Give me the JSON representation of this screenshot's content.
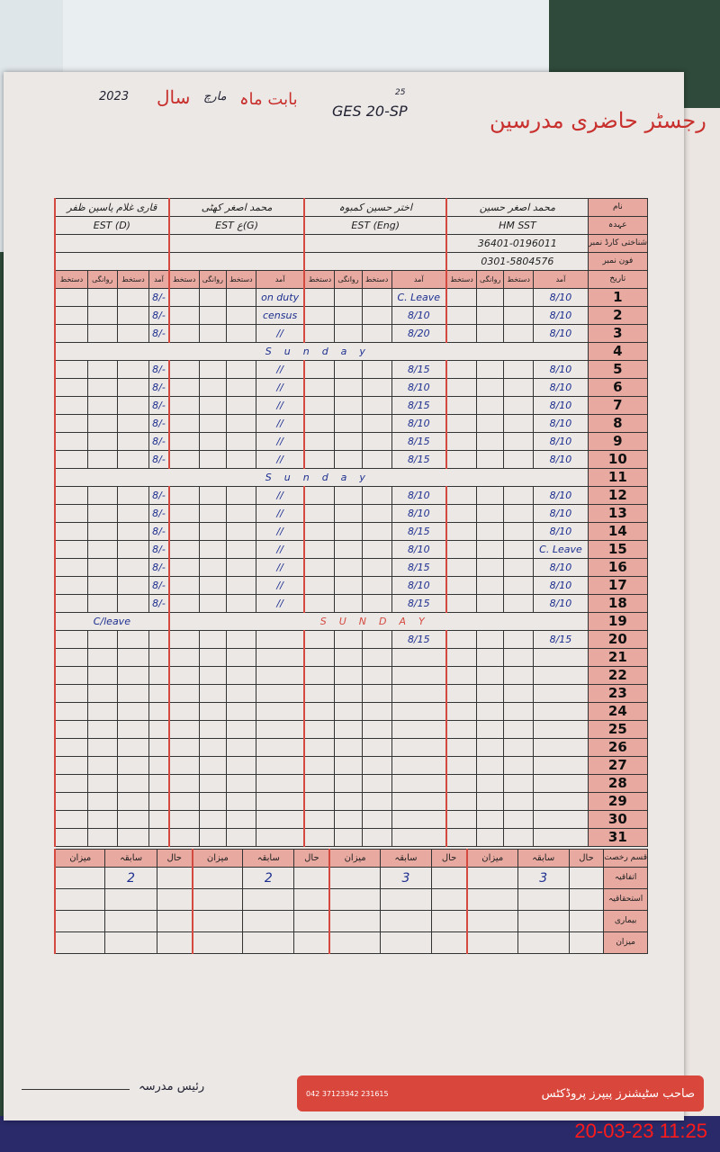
{
  "register": {
    "title": "رجسٹر حاضری مدرسین",
    "year_label": "سال",
    "year": "2023",
    "month_label": "بابت ماہ",
    "month": "مارچ",
    "school": "GES 20-SP",
    "school_note": "25"
  },
  "row_labels": {
    "name": "نام",
    "designation": "عہدہ",
    "cnic": "شناختی کارڈ نمبر",
    "phone": "فون نمبر",
    "date": "تاریخ"
  },
  "sub_headers": [
    "آمد",
    "دستخط",
    "روانگی",
    "دستخط"
  ],
  "teachers": [
    {
      "name": "محمد اصغر حسین",
      "designation": "HM SST",
      "cnic": "36401-0196011",
      "phone": "0301-5804576"
    },
    {
      "name": "اختر حسین کمبوہ",
      "designation": "EST (Eng)",
      "cnic": "",
      "phone": ""
    },
    {
      "name": "محمد اصغر کھٹی",
      "designation": "EST ع(G)",
      "cnic": "",
      "phone": ""
    },
    {
      "name": "قاری غلام یاسین ظفر",
      "designation": "EST (D)",
      "cnic": "",
      "phone": ""
    }
  ],
  "days": [
    {
      "day": "1",
      "entries": [
        "8/10",
        "C. Leave",
        "on duty",
        "8/-"
      ]
    },
    {
      "day": "2",
      "entries": [
        "8/10",
        "8/10",
        "census",
        "8/-"
      ]
    },
    {
      "day": "3",
      "entries": [
        "8/10",
        "8/20",
        "//",
        "8/-"
      ]
    },
    {
      "day": "4",
      "sunday": "Sunday"
    },
    {
      "day": "5",
      "entries": [
        "8/10",
        "8/15",
        "//",
        "8/-"
      ]
    },
    {
      "day": "6",
      "entries": [
        "8/10",
        "8/10",
        "//",
        "8/-"
      ]
    },
    {
      "day": "7",
      "entries": [
        "8/10",
        "8/15",
        "//",
        "8/-"
      ]
    },
    {
      "day": "8",
      "entries": [
        "8/10",
        "8/10",
        "//",
        "8/-"
      ]
    },
    {
      "day": "9",
      "entries": [
        "8/10",
        "8/15",
        "//",
        "8/-"
      ]
    },
    {
      "day": "10",
      "entries": [
        "8/10",
        "8/15",
        "//",
        "8/-"
      ]
    },
    {
      "day": "11",
      "sunday": "Sunday"
    },
    {
      "day": "12",
      "entries": [
        "8/10",
        "8/10",
        "//",
        "8/-"
      ]
    },
    {
      "day": "13",
      "entries": [
        "8/10",
        "8/10",
        "//",
        "8/-"
      ]
    },
    {
      "day": "14",
      "entries": [
        "8/10",
        "8/15",
        "//",
        "8/-"
      ]
    },
    {
      "day": "15",
      "entries": [
        "C. Leave",
        "8/10",
        "//",
        "8/-"
      ]
    },
    {
      "day": "16",
      "entries": [
        "8/10",
        "8/15",
        "//",
        "8/-"
      ]
    },
    {
      "day": "17",
      "entries": [
        "8/10",
        "8/10",
        "//",
        "8/-"
      ]
    },
    {
      "day": "18",
      "entries": [
        "8/10",
        "8/15",
        "//",
        "8/-"
      ]
    },
    {
      "day": "19",
      "sunday": "SUNDAY",
      "extra": "C/leave"
    },
    {
      "day": "20",
      "entries": [
        "8/15",
        "8/15",
        "",
        ""
      ]
    },
    {
      "day": "21"
    },
    {
      "day": "22"
    },
    {
      "day": "23"
    },
    {
      "day": "24"
    },
    {
      "day": "25"
    },
    {
      "day": "26"
    },
    {
      "day": "27"
    },
    {
      "day": "28"
    },
    {
      "day": "29"
    },
    {
      "day": "30"
    },
    {
      "day": "31"
    }
  ],
  "summary": {
    "type_label": "قسم رخصت",
    "cols": [
      "حال",
      "سابقہ",
      "میزان"
    ],
    "rows": [
      {
        "label": "اتفاقیہ",
        "values": [
          "2",
          "2",
          "3",
          "3"
        ]
      },
      {
        "label": "استحقاقیہ",
        "values": [
          "",
          "",
          "",
          ""
        ]
      },
      {
        "label": "بیماری",
        "values": [
          "",
          "",
          "",
          ""
        ]
      },
      {
        "label": "میزان",
        "values": [
          "",
          "",
          "",
          ""
        ]
      }
    ]
  },
  "footer": {
    "principal_label": "رئیس مدرسہ",
    "publisher": "صاحب سٹیشنرز پیپرز پروڈکٹس",
    "publisher_phone": "042 37123342 231615",
    "timestamp": "20-03-23  11:25"
  },
  "colors": {
    "print_red": "#c8302d",
    "header_pink": "#e7a9a0",
    "ink_blue": "#1d2f8f",
    "stamp_red": "#ff1a1a"
  }
}
